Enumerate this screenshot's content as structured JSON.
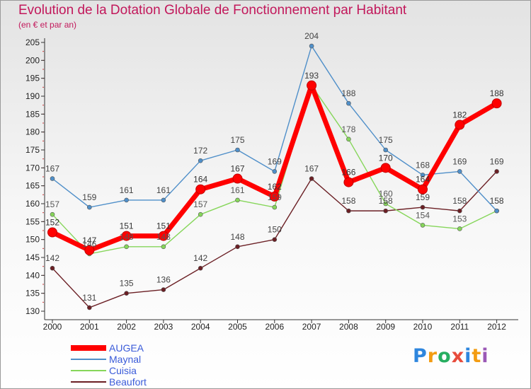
{
  "title": "Evolution de la Dotation Globale de Fonctionnement par Habitant",
  "subtitle": "(en € et par an)",
  "chart_data": {
    "type": "line",
    "x": [
      "2000",
      "2001",
      "2002",
      "2003",
      "2004",
      "2005",
      "2006",
      "2007",
      "2008",
      "2009",
      "2010",
      "2011",
      "2012"
    ],
    "ylim": [
      130,
      205
    ],
    "yticks": [
      130,
      135,
      140,
      145,
      150,
      155,
      160,
      165,
      170,
      175,
      180,
      185,
      190,
      195,
      200,
      205
    ],
    "grid": false,
    "legend_position": "bottom-left",
    "series": [
      {
        "name": "AUGEA",
        "color": "#ff0000",
        "values": [
          152,
          147,
          151,
          151,
          164,
          167,
          162,
          193,
          166,
          170,
          164,
          182,
          188
        ],
        "labels": [
          "152",
          "147",
          "151",
          "151",
          "164",
          "167",
          "162",
          "193",
          "166",
          "170",
          "164",
          "182",
          "188"
        ]
      },
      {
        "name": "Maynal",
        "color": "#4f8fc9",
        "values": [
          167,
          159,
          161,
          161,
          172,
          175,
          169,
          204,
          188,
          175,
          168,
          169,
          158
        ],
        "labels": [
          "167",
          "159",
          "161",
          "161",
          "172",
          "175",
          "169",
          "204",
          "188",
          "175",
          "168",
          "169",
          "158"
        ]
      },
      {
        "name": "Cuisia",
        "color": "#86d65a",
        "values": [
          157,
          146,
          148,
          148,
          157,
          161,
          159,
          193,
          178,
          160,
          154,
          153,
          158
        ],
        "labels": [
          "157",
          "146",
          "148",
          "148",
          "157",
          "161",
          "159",
          "193",
          "178",
          "160",
          "154",
          "153",
          "158"
        ]
      },
      {
        "name": "Beaufort",
        "color": "#6b1f24",
        "values": [
          142,
          131,
          135,
          136,
          142,
          148,
          150,
          167,
          158,
          158,
          159,
          158,
          169
        ],
        "labels": [
          "142",
          "131",
          "135",
          "136",
          "142",
          "148",
          "150",
          "167",
          "158",
          "158",
          "159",
          "158",
          "169"
        ]
      }
    ]
  },
  "legend": {
    "label_color": "#3a5bd9",
    "items": [
      {
        "label": "AUGEA",
        "color": "#ff0000"
      },
      {
        "label": "Maynal",
        "color": "#4f8fc9"
      },
      {
        "label": "Cuisia",
        "color": "#86d65a"
      },
      {
        "label": "Beaufort",
        "color": "#6b1f24"
      }
    ]
  },
  "logo": {
    "letters": [
      "P",
      "r",
      "o",
      "x",
      "i",
      "t",
      "i"
    ],
    "colors": [
      "#2e86de",
      "#f39c12",
      "#27ae60",
      "#e74c3c",
      "#2e86de",
      "#f39c12",
      "#9b59b6"
    ]
  }
}
